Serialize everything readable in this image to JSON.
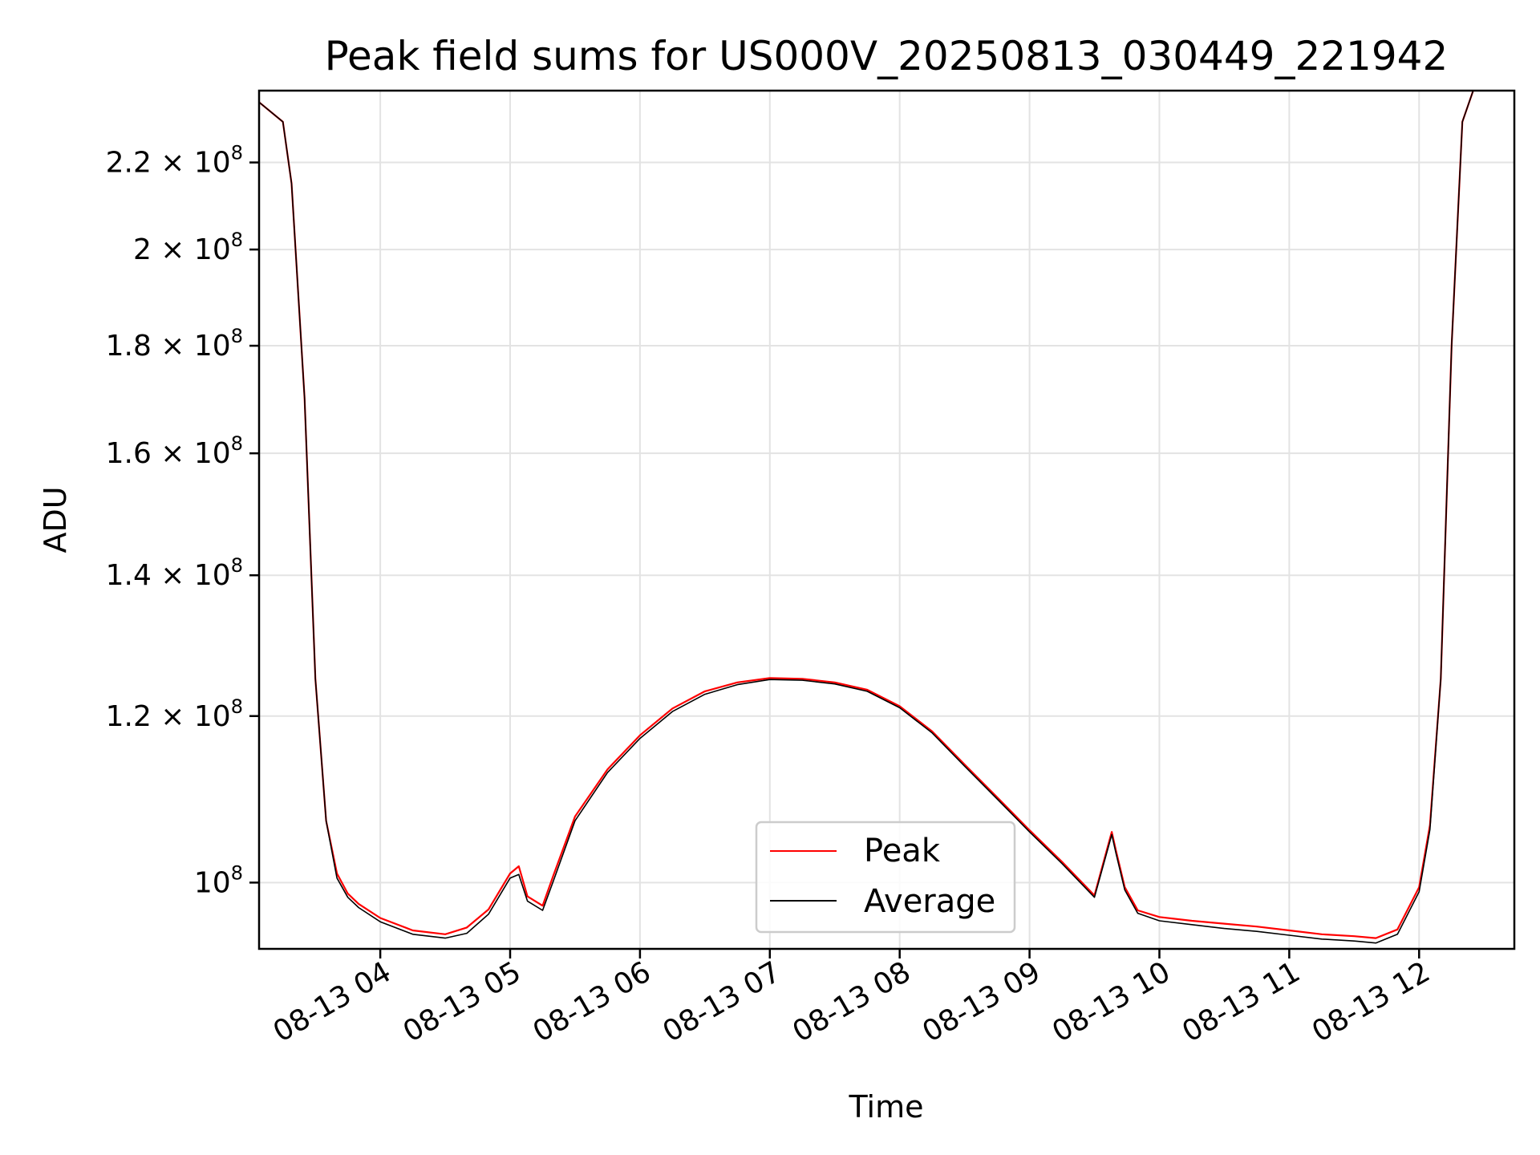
{
  "chart_data": {
    "type": "line",
    "title": "Peak field sums for US000V_20250813_030449_221942",
    "xlabel": "Time",
    "ylabel": "ADU",
    "yscale": "log",
    "ylim": [
      93000000,
      238000000
    ],
    "xlim": [
      "08-13 03:04",
      "08-13 12:44"
    ],
    "grid": true,
    "legend_position": "lower-center",
    "x_ticks": [
      "08-13 04",
      "08-13 05",
      "08-13 06",
      "08-13 07",
      "08-13 08",
      "08-13 09",
      "08-13 10",
      "08-13 11",
      "08-13 12"
    ],
    "y_ticks": [
      {
        "value": 100000000,
        "mantissa": "",
        "base": "10",
        "exp": "8"
      },
      {
        "value": 120000000,
        "mantissa": "1.2",
        "base": "10",
        "exp": "8"
      },
      {
        "value": 140000000,
        "mantissa": "1.4",
        "base": "10",
        "exp": "8"
      },
      {
        "value": 160000000,
        "mantissa": "1.6",
        "base": "10",
        "exp": "8"
      },
      {
        "value": 180000000,
        "mantissa": "1.8",
        "base": "10",
        "exp": "8"
      },
      {
        "value": 200000000,
        "mantissa": "2",
        "base": "10",
        "exp": "8"
      },
      {
        "value": 220000000,
        "mantissa": "2.2",
        "base": "10",
        "exp": "8"
      }
    ],
    "x": [
      "08-13 03:04",
      "08-13 03:15",
      "08-13 03:19",
      "08-13 03:25",
      "08-13 03:30",
      "08-13 03:35",
      "08-13 03:40",
      "08-13 03:45",
      "08-13 03:50",
      "08-13 04:00",
      "08-13 04:15",
      "08-13 04:30",
      "08-13 04:40",
      "08-13 04:50",
      "08-13 05:00",
      "08-13 05:04",
      "08-13 05:08",
      "08-13 05:15",
      "08-13 05:20",
      "08-13 05:30",
      "08-13 05:45",
      "08-13 06:00",
      "08-13 06:15",
      "08-13 06:30",
      "08-13 06:45",
      "08-13 07:00",
      "08-13 07:15",
      "08-13 07:30",
      "08-13 07:45",
      "08-13 08:00",
      "08-13 08:15",
      "08-13 08:30",
      "08-13 08:45",
      "08-13 09:00",
      "08-13 09:15",
      "08-13 09:30",
      "08-13 09:38",
      "08-13 09:40",
      "08-13 09:44",
      "08-13 09:50",
      "08-13 10:00",
      "08-13 10:15",
      "08-13 10:30",
      "08-13 10:45",
      "08-13 11:00",
      "08-13 11:15",
      "08-13 11:30",
      "08-13 11:40",
      "08-13 11:50",
      "08-13 12:00",
      "08-13 12:05",
      "08-13 12:10",
      "08-13 12:15",
      "08-13 12:20",
      "08-13 12:25"
    ],
    "series": [
      {
        "name": "Peak",
        "color": "#ff0000",
        "values": [
          235000000,
          230000000,
          215000000,
          170000000,
          125000000,
          107000000,
          101000000,
          98800000,
          97700000,
          96200000,
          94900000,
          94500000,
          95200000,
          97100000,
          101000000,
          101800000,
          98500000,
          97500000,
          100800000,
          107500000,
          113200000,
          117500000,
          121000000,
          123300000,
          124500000,
          125100000,
          125000000,
          124500000,
          123500000,
          121300000,
          118000000,
          113800000,
          109800000,
          105900000,
          102300000,
          98600000,
          105700000,
          103500000,
          99500000,
          97000000,
          96300000,
          95900000,
          95600000,
          95300000,
          94900000,
          94500000,
          94300000,
          94100000,
          95000000,
          99500000,
          106500000,
          125000000,
          180000000,
          230000000,
          238000000
        ]
      },
      {
        "name": "Average",
        "color": "#000000",
        "values": [
          235000000,
          230000000,
          215000000,
          170000000,
          125000000,
          107000000,
          100500000,
          98400000,
          97300000,
          95800000,
          94500000,
          94100000,
          94600000,
          96600000,
          100500000,
          100900000,
          98000000,
          97000000,
          100200000,
          107000000,
          112800000,
          117100000,
          120600000,
          122900000,
          124200000,
          124900000,
          124800000,
          124300000,
          123300000,
          121100000,
          117800000,
          113600000,
          109600000,
          105700000,
          102100000,
          98400000,
          105400000,
          103200000,
          99200000,
          96700000,
          95900000,
          95500000,
          95100000,
          94800000,
          94400000,
          94000000,
          93800000,
          93600000,
          94500000,
          99000000,
          106000000,
          125000000,
          180000000,
          230000000,
          238000000
        ]
      }
    ]
  }
}
